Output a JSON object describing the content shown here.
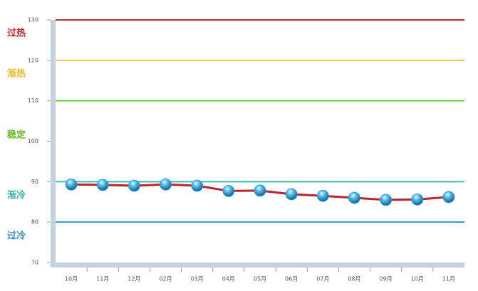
{
  "chart_data": {
    "type": "line",
    "categories": [
      "10月",
      "11月",
      "12月",
      "02月",
      "03月",
      "04月",
      "05月",
      "06月",
      "07月",
      "08月",
      "09月",
      "10月",
      "11月"
    ],
    "series": [
      {
        "color": "#b8262b",
        "marker_color": "#2a9fd8",
        "values": [
          89.3,
          89.2,
          89.0,
          89.3,
          89.0,
          87.7,
          87.8,
          86.9,
          86.5,
          86.0,
          85.5,
          85.6,
          86.2
        ]
      }
    ],
    "ylim": [
      70,
      130
    ],
    "yticks": [
      70,
      80,
      90,
      100,
      110,
      120,
      130
    ],
    "thresholds": [
      {
        "value": 130,
        "color": "#c0282d"
      },
      {
        "value": 120,
        "color": "#f5c342"
      },
      {
        "value": 110,
        "color": "#66cc33"
      },
      {
        "value": 90,
        "color": "#33c0b0"
      },
      {
        "value": 80,
        "color": "#3399cc"
      }
    ],
    "zones": [
      {
        "label": "过热",
        "color": "#c0282d"
      },
      {
        "label": "渐热",
        "color": "#f0b820"
      },
      {
        "label": "稳定",
        "color": "#66bb22"
      },
      {
        "label": "渐冷",
        "color": "#2fb5a8"
      },
      {
        "label": "过冷",
        "color": "#2f8fc4"
      }
    ]
  }
}
